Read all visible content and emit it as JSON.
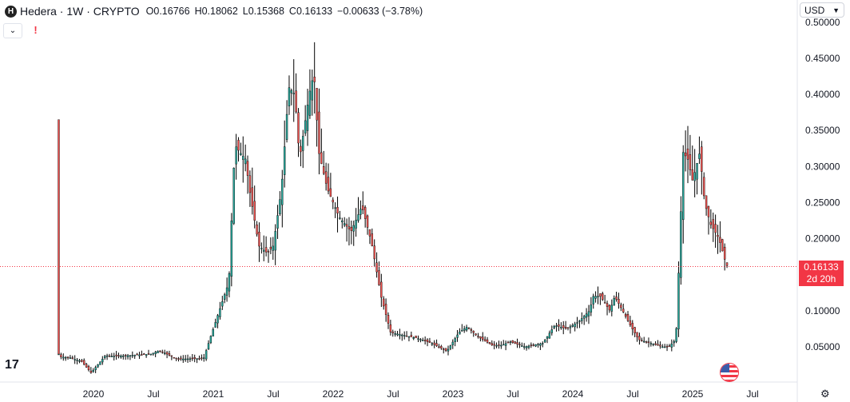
{
  "header": {
    "symbol_initial": "H",
    "title": "Hedera · 1W · CRYPTO",
    "open_label": "O",
    "open": "0.16766",
    "high_label": "H",
    "high": "0.18062",
    "low_label": "L",
    "low": "0.15368",
    "close_label": "C",
    "close": "0.16133",
    "change": "−0.00633 (−3.78%)"
  },
  "toolbar": {
    "collapse_icon": "chevron-down-icon",
    "alert_label": "!"
  },
  "currency_selector": {
    "value": "USD",
    "icon": "chevron-down-icon"
  },
  "price_tag": {
    "price": "0.16133",
    "countdown": "2d 20h"
  },
  "watermark": "17",
  "colors": {
    "up": "#26a69a",
    "down": "#ef5350",
    "candle_border": "#000000",
    "last_price_line": "#f23645",
    "price_tag": "#f23645"
  },
  "chart_data": {
    "type": "candlestick",
    "title": "Hedera · 1W · CRYPTO",
    "x_ticks": [
      "2020",
      "Jul",
      "2021",
      "Jul",
      "2022",
      "Jul",
      "2023",
      "Jul",
      "2024",
      "Jul",
      "2025",
      "Jul"
    ],
    "y_ticks": [
      "0.05000",
      "0.10000",
      "0.15000",
      "0.20000",
      "0.25000",
      "0.30000",
      "0.35000",
      "0.40000",
      "0.45000",
      "0.50000"
    ],
    "y_range": [
      0.0,
      0.5
    ],
    "last_price": 0.16133,
    "series": [
      {
        "name": "Hedera",
        "close_path": [
          [
            2019.71,
            0.04
          ],
          [
            2019.72,
            0.036
          ],
          [
            2019.8,
            0.035
          ],
          [
            2019.9,
            0.03
          ],
          [
            2019.98,
            0.014
          ],
          [
            2020.1,
            0.038
          ],
          [
            2020.15,
            0.037
          ],
          [
            2020.3,
            0.038
          ],
          [
            2020.48,
            0.04
          ],
          [
            2020.55,
            0.045
          ],
          [
            2020.7,
            0.033
          ],
          [
            2020.92,
            0.034
          ],
          [
            2020.97,
            0.06
          ],
          [
            2021.05,
            0.1
          ],
          [
            2021.13,
            0.14
          ],
          [
            2021.18,
            0.33
          ],
          [
            2021.22,
            0.32
          ],
          [
            2021.27,
            0.31
          ],
          [
            2021.3,
            0.27
          ],
          [
            2021.38,
            0.19
          ],
          [
            2021.45,
            0.18
          ],
          [
            2021.5,
            0.19
          ],
          [
            2021.57,
            0.27
          ],
          [
            2021.63,
            0.41
          ],
          [
            2021.68,
            0.4
          ],
          [
            2021.72,
            0.31
          ],
          [
            2021.8,
            0.4
          ],
          [
            2021.84,
            0.43
          ],
          [
            2021.88,
            0.32
          ],
          [
            2021.95,
            0.27
          ],
          [
            2022.0,
            0.25
          ],
          [
            2022.05,
            0.23
          ],
          [
            2022.15,
            0.21
          ],
          [
            2022.24,
            0.245
          ],
          [
            2022.32,
            0.195
          ],
          [
            2022.4,
            0.12
          ],
          [
            2022.48,
            0.07
          ],
          [
            2022.56,
            0.067
          ],
          [
            2022.7,
            0.062
          ],
          [
            2022.82,
            0.055
          ],
          [
            2022.95,
            0.044
          ],
          [
            2023.05,
            0.07
          ],
          [
            2023.12,
            0.078
          ],
          [
            2023.2,
            0.065
          ],
          [
            2023.33,
            0.052
          ],
          [
            2023.4,
            0.052
          ],
          [
            2023.48,
            0.057
          ],
          [
            2023.6,
            0.05
          ],
          [
            2023.75,
            0.055
          ],
          [
            2023.85,
            0.08
          ],
          [
            2023.95,
            0.075
          ],
          [
            2024.05,
            0.085
          ],
          [
            2024.14,
            0.1
          ],
          [
            2024.17,
            0.12
          ],
          [
            2024.23,
            0.12
          ],
          [
            2024.31,
            0.1
          ],
          [
            2024.35,
            0.12
          ],
          [
            2024.4,
            0.105
          ],
          [
            2024.48,
            0.08
          ],
          [
            2024.55,
            0.06
          ],
          [
            2024.65,
            0.055
          ],
          [
            2024.75,
            0.05
          ],
          [
            2024.8,
            0.05
          ],
          [
            2024.86,
            0.06
          ],
          [
            2024.89,
            0.18
          ],
          [
            2024.92,
            0.32
          ],
          [
            2024.96,
            0.31
          ],
          [
            2025.0,
            0.28
          ],
          [
            2025.06,
            0.32
          ],
          [
            2025.1,
            0.25
          ],
          [
            2025.15,
            0.22
          ],
          [
            2025.22,
            0.2
          ],
          [
            2025.27,
            0.17
          ],
          [
            2025.29,
            0.16133
          ]
        ]
      }
    ]
  }
}
